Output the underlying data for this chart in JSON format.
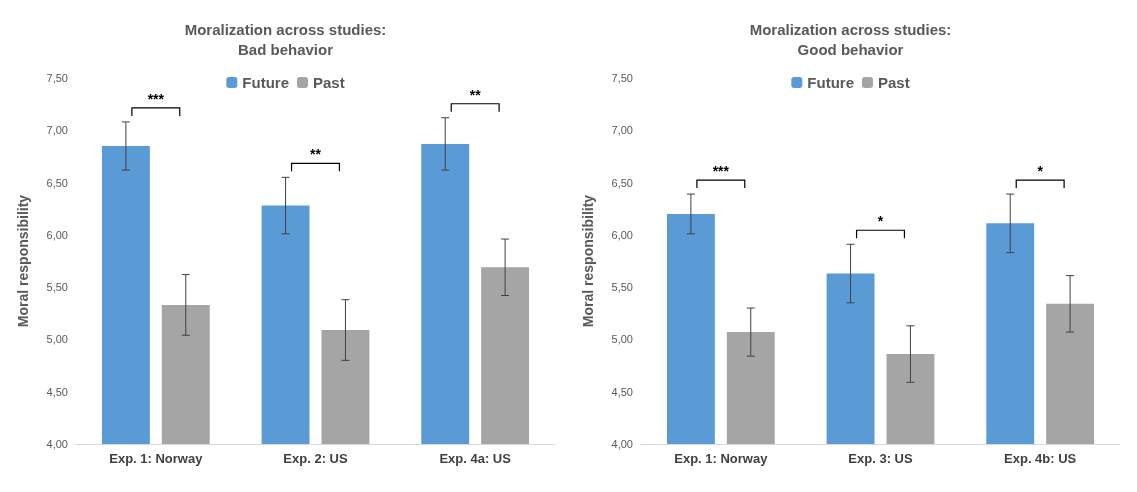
{
  "chart_data": [
    {
      "type": "bar",
      "title": "Moralization across studies:\nBad behavior",
      "ylabel": "Moral responsibility",
      "categories": [
        "Exp. 1: Norway",
        "Exp. 2: US",
        "Exp. 4a: US"
      ],
      "series": [
        {
          "name": "Future",
          "color": "#5b9bd5",
          "values": [
            6.85,
            6.28,
            6.87
          ],
          "errors": [
            0.23,
            0.27,
            0.25
          ]
        },
        {
          "name": "Past",
          "color": "#a5a5a5",
          "values": [
            5.33,
            5.09,
            5.69
          ],
          "errors": [
            0.29,
            0.29,
            0.27
          ]
        }
      ],
      "ylim": [
        4,
        7.5
      ],
      "yticks": [
        {
          "value": 4,
          "label": "4,00"
        },
        {
          "value": 4.5,
          "label": "4,50"
        },
        {
          "value": 5,
          "label": "5,00"
        },
        {
          "value": 5.5,
          "label": "5,50"
        },
        {
          "value": 6,
          "label": "6,00"
        },
        {
          "value": 6.5,
          "label": "6,50"
        },
        {
          "value": 7,
          "label": "7,00"
        },
        {
          "value": 7.5,
          "label": "7,50"
        }
      ],
      "annotations": [
        "***",
        "**",
        "**"
      ],
      "legend": "top",
      "grid": false
    },
    {
      "type": "bar",
      "title": "Moralization across studies:\nGood behavior",
      "ylabel": "Moral responsibility",
      "categories": [
        "Exp. 1: Norway",
        "Exp. 3: US",
        "Exp. 4b: US"
      ],
      "series": [
        {
          "name": "Future",
          "color": "#5b9bd5",
          "values": [
            6.2,
            5.63,
            6.11
          ],
          "errors": [
            0.19,
            0.28,
            0.28
          ]
        },
        {
          "name": "Past",
          "color": "#a5a5a5",
          "values": [
            5.07,
            4.86,
            5.34
          ],
          "errors": [
            0.23,
            0.27,
            0.27
          ]
        }
      ],
      "ylim": [
        4,
        7.5
      ],
      "yticks": [
        {
          "value": 4,
          "label": "4,00"
        },
        {
          "value": 4.5,
          "label": "4,50"
        },
        {
          "value": 5,
          "label": "5,00"
        },
        {
          "value": 5.5,
          "label": "5,50"
        },
        {
          "value": 6,
          "label": "6,00"
        },
        {
          "value": 6.5,
          "label": "6,50"
        },
        {
          "value": 7,
          "label": "7,00"
        },
        {
          "value": 7.5,
          "label": "7,50"
        }
      ],
      "annotations": [
        "***",
        "*",
        "*"
      ],
      "legend": "top",
      "grid": false
    }
  ]
}
